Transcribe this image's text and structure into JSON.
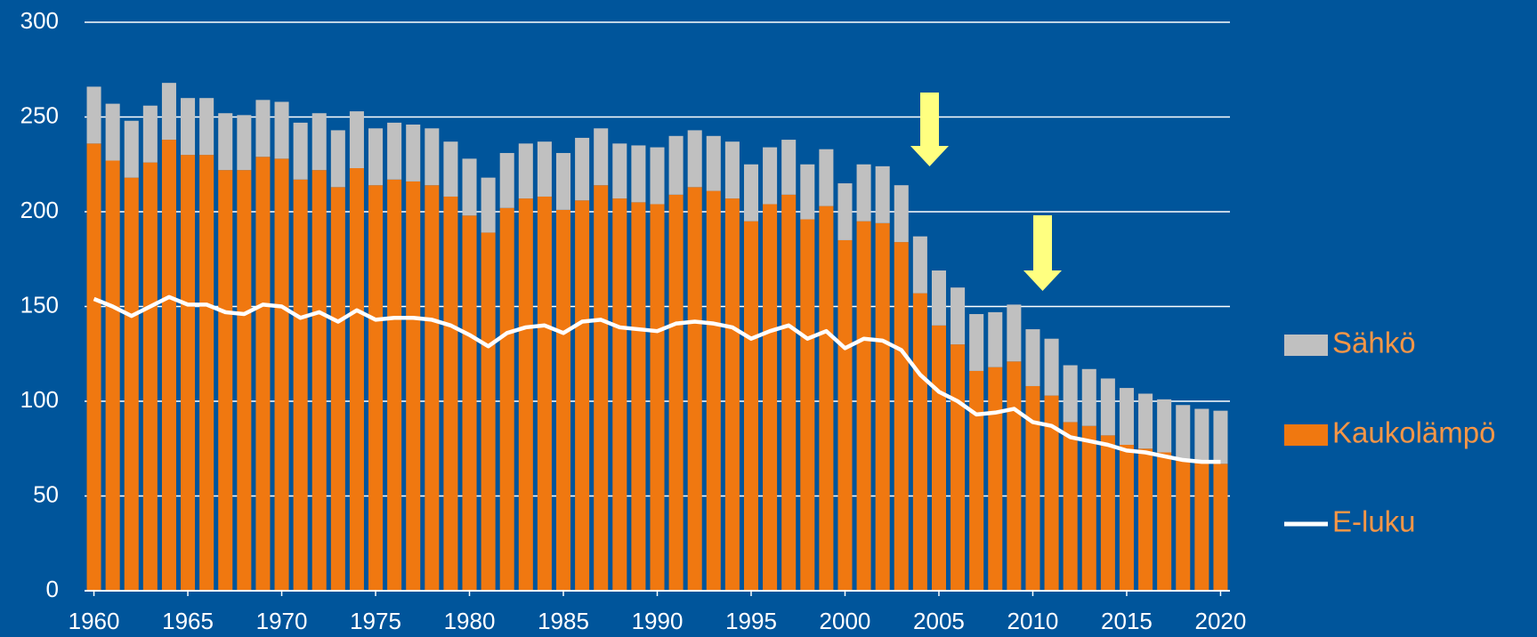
{
  "chart_data": {
    "type": "bar",
    "stacked": true,
    "x": [
      1960,
      1961,
      1962,
      1963,
      1964,
      1965,
      1966,
      1967,
      1968,
      1969,
      1970,
      1971,
      1972,
      1973,
      1974,
      1975,
      1976,
      1977,
      1978,
      1979,
      1980,
      1981,
      1982,
      1983,
      1984,
      1985,
      1986,
      1987,
      1988,
      1989,
      1990,
      1991,
      1992,
      1993,
      1994,
      1995,
      1996,
      1997,
      1998,
      1999,
      2000,
      2001,
      2002,
      2003,
      2004,
      2005,
      2006,
      2007,
      2008,
      2009,
      2010,
      2011,
      2012,
      2013,
      2014,
      2015,
      2016,
      2017,
      2018,
      2019,
      2020
    ],
    "series": [
      {
        "name": "Sähkö",
        "type": "bar",
        "color": "#c0c0c0",
        "values": [
          30,
          30,
          30,
          30,
          30,
          30,
          30,
          30,
          29,
          30,
          30,
          30,
          30,
          30,
          30,
          30,
          30,
          30,
          30,
          29,
          30,
          29,
          29,
          29,
          29,
          30,
          33,
          30,
          29,
          30,
          30,
          31,
          30,
          29,
          30,
          30,
          30,
          29,
          29,
          30,
          30,
          30,
          30,
          30,
          30,
          29,
          30,
          30,
          29,
          30,
          30,
          30,
          30,
          30,
          30,
          30,
          29,
          28,
          29,
          28,
          28
        ]
      },
      {
        "name": "Kaukolämpö",
        "type": "bar",
        "color": "#f07810",
        "values": [
          236,
          227,
          218,
          226,
          238,
          230,
          230,
          222,
          222,
          229,
          228,
          217,
          222,
          213,
          223,
          214,
          217,
          216,
          214,
          208,
          198,
          189,
          202,
          207,
          208,
          201,
          206,
          214,
          207,
          205,
          204,
          209,
          213,
          211,
          207,
          195,
          204,
          209,
          196,
          203,
          185,
          195,
          194,
          184,
          157,
          140,
          130,
          116,
          118,
          121,
          108,
          103,
          89,
          87,
          82,
          77,
          75,
          73,
          69,
          68,
          67
        ]
      },
      {
        "name": "E-luku",
        "type": "line",
        "color": "#ffffff",
        "values": [
          154,
          150,
          145,
          150,
          155,
          151,
          151,
          147,
          146,
          151,
          150,
          144,
          147,
          142,
          148,
          143,
          144,
          144,
          143,
          140,
          135,
          129,
          136,
          139,
          140,
          136,
          142,
          143,
          139,
          138,
          137,
          141,
          142,
          141,
          139,
          133,
          137,
          140,
          133,
          137,
          128,
          133,
          132,
          127,
          114,
          105,
          100,
          93,
          94,
          96,
          89,
          87,
          81,
          79,
          77,
          74,
          73,
          71,
          69,
          68,
          68
        ]
      }
    ],
    "xlim": [
      1959.5,
      2020.5
    ],
    "xticks": [
      1960,
      1965,
      1970,
      1975,
      1980,
      1985,
      1990,
      1995,
      2000,
      2005,
      2010,
      2015,
      2020
    ],
    "ylim": [
      0,
      300
    ],
    "yticks": [
      0,
      50,
      100,
      150,
      200,
      250,
      300
    ],
    "grid": true,
    "legend": "right"
  }
}
